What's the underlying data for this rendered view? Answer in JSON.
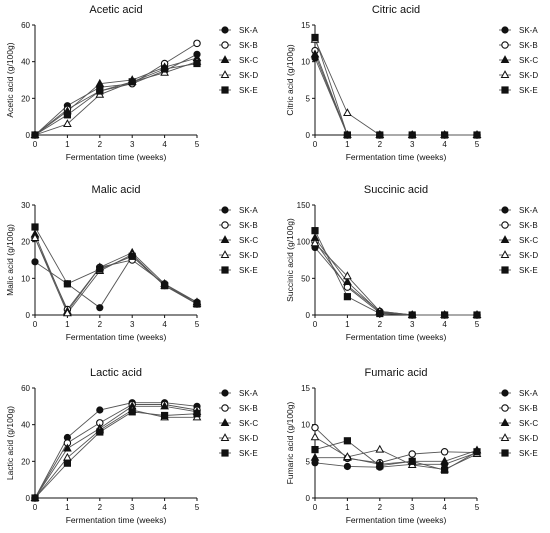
{
  "figure": {
    "series_names": [
      "SK-A",
      "SK-B",
      "SK-C",
      "SK-D",
      "SK-E"
    ],
    "marker_styles": [
      "filled-circle",
      "open-circle",
      "filled-triangle",
      "open-triangle",
      "filled-square"
    ]
  },
  "chart_data": [
    {
      "type": "line",
      "title": "Acetic acid",
      "xlabel": "Fermentation time (weeks)",
      "ylabel": "Acetic acid (g/100g)",
      "x": [
        0,
        1,
        2,
        3,
        4,
        5
      ],
      "x_ticks": [
        "0",
        "1",
        "2",
        "3",
        "4",
        "5"
      ],
      "xlim": [
        0,
        5
      ],
      "y_ticks": [
        "0",
        "20",
        "40",
        "60"
      ],
      "ylim": [
        0,
        60
      ],
      "legend_position": "right",
      "series": [
        {
          "name": "SK-A",
          "values": [
            0,
            16,
            26,
            28,
            35,
            44
          ]
        },
        {
          "name": "SK-B",
          "values": [
            0,
            14,
            24,
            28,
            39,
            50
          ]
        },
        {
          "name": "SK-C",
          "values": [
            0,
            13,
            28,
            30,
            37,
            42
          ]
        },
        {
          "name": "SK-D",
          "values": [
            0,
            6,
            22,
            29,
            34,
            40
          ]
        },
        {
          "name": "SK-E",
          "values": [
            0,
            11,
            24,
            29,
            36,
            39
          ]
        }
      ]
    },
    {
      "type": "line",
      "title": "Citric acid",
      "xlabel": "Fermentation time (weeks)",
      "ylabel": "Citric acid (g/100g)",
      "x": [
        0,
        1,
        2,
        3,
        4,
        5
      ],
      "x_ticks": [
        "0",
        "1",
        "2",
        "3",
        "4",
        "5"
      ],
      "xlim": [
        0,
        5
      ],
      "y_ticks": [
        "0",
        "5",
        "10",
        "15"
      ],
      "ylim": [
        0,
        15
      ],
      "legend_position": "right",
      "series": [
        {
          "name": "SK-A",
          "values": [
            10.5,
            0,
            0,
            0,
            0,
            0
          ]
        },
        {
          "name": "SK-B",
          "values": [
            11.5,
            0,
            0,
            0,
            0,
            0
          ]
        },
        {
          "name": "SK-C",
          "values": [
            11.0,
            0,
            0,
            0,
            0,
            0
          ]
        },
        {
          "name": "SK-D",
          "values": [
            13.0,
            3.0,
            0,
            0,
            0,
            0
          ]
        },
        {
          "name": "SK-E",
          "values": [
            13.3,
            0,
            0,
            0,
            0,
            0
          ]
        }
      ]
    },
    {
      "type": "line",
      "title": "Malic acid",
      "xlabel": "Fermentation time (weeks)",
      "ylabel": "Malic acid (g/100g)",
      "x": [
        0,
        1,
        2,
        3,
        4,
        5
      ],
      "x_ticks": [
        "0",
        "1",
        "2",
        "3",
        "4",
        "5"
      ],
      "xlim": [
        0,
        5
      ],
      "y_ticks": [
        "0",
        "10",
        "20",
        "30"
      ],
      "ylim": [
        0,
        30
      ],
      "legend_position": "right",
      "series": [
        {
          "name": "SK-A",
          "values": [
            14.5,
            8.5,
            2.0,
            16.0,
            8.0,
            3.5
          ]
        },
        {
          "name": "SK-B",
          "values": [
            21.0,
            1.5,
            13.0,
            15.0,
            8.5,
            3.0
          ]
        },
        {
          "name": "SK-C",
          "values": [
            22.0,
            1.0,
            13.0,
            17.0,
            8.5,
            3.5
          ]
        },
        {
          "name": "SK-D",
          "values": [
            21.0,
            0.5,
            12.0,
            16.5,
            8.0,
            3.0
          ]
        },
        {
          "name": "SK-E",
          "values": [
            24.0,
            8.5,
            12.5,
            16.0,
            8.0,
            3.0
          ]
        }
      ]
    },
    {
      "type": "line",
      "title": "Succinic acid",
      "xlabel": "Fermentation time (weeks)",
      "ylabel": "Succinic acid (g/100g)",
      "x": [
        0,
        1,
        2,
        3,
        4,
        5
      ],
      "x_ticks": [
        "0",
        "1",
        "2",
        "3",
        "4",
        "5"
      ],
      "xlim": [
        0,
        5
      ],
      "y_ticks": [
        "0",
        "50",
        "100",
        "150"
      ],
      "ylim": [
        0,
        150
      ],
      "legend_position": "right",
      "series": [
        {
          "name": "SK-A",
          "values": [
            92,
            40,
            5,
            0,
            0,
            0
          ]
        },
        {
          "name": "SK-B",
          "values": [
            100,
            38,
            3,
            0,
            0,
            0
          ]
        },
        {
          "name": "SK-C",
          "values": [
            105,
            45,
            4,
            0,
            0,
            0
          ]
        },
        {
          "name": "SK-D",
          "values": [
            98,
            53,
            5,
            0,
            0,
            0
          ]
        },
        {
          "name": "SK-E",
          "values": [
            115,
            25,
            2,
            0,
            0,
            0
          ]
        }
      ]
    },
    {
      "type": "line",
      "title": "Lactic acid",
      "xlabel": "Fermentation time (weeks)",
      "ylabel": "Lactic acid (g/100g)",
      "x": [
        0,
        1,
        2,
        3,
        4,
        5
      ],
      "x_ticks": [
        "0",
        "1",
        "2",
        "3",
        "4",
        "5"
      ],
      "xlim": [
        0,
        5
      ],
      "y_ticks": [
        "0",
        "20",
        "40",
        "60"
      ],
      "ylim": [
        0,
        60
      ],
      "legend_position": "right",
      "series": [
        {
          "name": "SK-A",
          "values": [
            0,
            33,
            48,
            52,
            52,
            50
          ]
        },
        {
          "name": "SK-B",
          "values": [
            0,
            30,
            41,
            51,
            51,
            48
          ]
        },
        {
          "name": "SK-C",
          "values": [
            0,
            27,
            38,
            50,
            50,
            47
          ]
        },
        {
          "name": "SK-D",
          "values": [
            0,
            22,
            37,
            48,
            44,
            44
          ]
        },
        {
          "name": "SK-E",
          "values": [
            0,
            19,
            36,
            47,
            45,
            46
          ]
        }
      ]
    },
    {
      "type": "line",
      "title": "Fumaric acid",
      "xlabel": "Fermentation time (weeks)",
      "ylabel": "Fumaric acid (g/100g)",
      "x": [
        0,
        1,
        2,
        3,
        4,
        5
      ],
      "x_ticks": [
        "0",
        "1",
        "2",
        "3",
        "4",
        "5"
      ],
      "xlim": [
        0,
        5
      ],
      "y_ticks": [
        "0",
        "5",
        "10",
        "15"
      ],
      "ylim": [
        0,
        15
      ],
      "legend_position": "right",
      "series": [
        {
          "name": "SK-A",
          "values": [
            4.8,
            4.3,
            4.2,
            4.6,
            4.6,
            6.2
          ]
        },
        {
          "name": "SK-B",
          "values": [
            9.6,
            5.4,
            4.8,
            6.0,
            6.3,
            6.2
          ]
        },
        {
          "name": "SK-C",
          "values": [
            5.5,
            5.5,
            4.6,
            5.0,
            5.0,
            6.5
          ]
        },
        {
          "name": "SK-D",
          "values": [
            8.3,
            5.6,
            6.6,
            4.5,
            3.9,
            6.0
          ]
        },
        {
          "name": "SK-E",
          "values": [
            6.6,
            7.8,
            4.4,
            5.0,
            3.8,
            6.3
          ]
        }
      ]
    }
  ]
}
